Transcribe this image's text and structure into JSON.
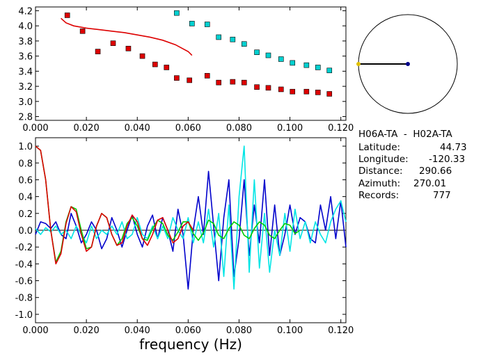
{
  "info": {
    "station_pair": "H06A-TA  -  H02A-TA",
    "latitude_label": "Latitude:",
    "latitude_value": "44.73",
    "longitude_label": "Longitude:",
    "longitude_value": "-120.33",
    "distance_label": "Distance:",
    "distance_value": "290.66",
    "azimuth_label": "Azimuth:",
    "azimuth_value": "270.01",
    "records_label": "Records:",
    "records_value": "777"
  },
  "chart_data": [
    {
      "type": "scatter",
      "panel": "top",
      "xlim": [
        0.0,
        0.122
      ],
      "ylim": [
        2.75,
        4.25
      ],
      "x_ticks": [
        "0.000",
        "0.020",
        "0.040",
        "0.060",
        "0.080",
        "0.100",
        "0.120"
      ],
      "y_ticks": [
        "2.8",
        "3.0",
        "3.2",
        "3.4",
        "3.6",
        "3.8",
        "4.0",
        "4.2"
      ],
      "series": [
        {
          "color": "#dd0000",
          "marker": "square",
          "x": [
            0.0125,
            0.0185,
            0.0245,
            0.0305,
            0.0365,
            0.042,
            0.047,
            0.0515,
            0.0555,
            0.0605,
            0.0675,
            0.072,
            0.0775,
            0.082,
            0.087,
            0.0915,
            0.0965,
            0.101,
            0.1065,
            0.111,
            0.1155
          ],
          "y": [
            4.14,
            3.93,
            3.66,
            3.77,
            3.7,
            3.6,
            3.49,
            3.45,
            3.31,
            3.28,
            3.34,
            3.25,
            3.26,
            3.25,
            3.19,
            3.18,
            3.16,
            3.13,
            3.13,
            3.12,
            3.1
          ]
        },
        {
          "color": "#00d0d0",
          "marker": "square",
          "x": [
            0.0555,
            0.0615,
            0.0675,
            0.072,
            0.0775,
            0.082,
            0.087,
            0.0915,
            0.0965,
            0.101,
            0.1065,
            0.111,
            0.1155
          ],
          "y": [
            4.17,
            4.03,
            4.02,
            3.85,
            3.82,
            3.76,
            3.65,
            3.61,
            3.56,
            3.51,
            3.48,
            3.45,
            3.41
          ]
        },
        {
          "color": "#dd0000",
          "type": "line",
          "x": [
            0.01,
            0.012,
            0.015,
            0.02,
            0.025,
            0.03,
            0.035,
            0.04,
            0.045,
            0.05,
            0.055,
            0.06,
            0.0615
          ],
          "y": [
            4.1,
            4.04,
            4.0,
            3.97,
            3.95,
            3.93,
            3.91,
            3.88,
            3.85,
            3.81,
            3.75,
            3.66,
            3.61
          ]
        }
      ]
    },
    {
      "type": "line",
      "panel": "bottom",
      "xlabel": "frequency (Hz)",
      "xlim": [
        0.0,
        0.122
      ],
      "ylim": [
        -1.1,
        1.1
      ],
      "x_ticks": [
        "0.000",
        "0.020",
        "0.040",
        "0.060",
        "0.080",
        "0.100",
        "0.120"
      ],
      "y_ticks": [
        "-1.0",
        "-0.8",
        "-0.6",
        "-0.4",
        "-0.2",
        "0.0",
        "0.2",
        "0.4",
        "0.6",
        "0.8",
        "1.0"
      ],
      "series": [
        {
          "color": "#0000cc",
          "x": [
            0.0,
            0.002,
            0.004,
            0.006,
            0.008,
            0.01,
            0.012,
            0.014,
            0.016,
            0.018,
            0.02,
            0.022,
            0.024,
            0.026,
            0.028,
            0.03,
            0.032,
            0.034,
            0.036,
            0.038,
            0.04,
            0.042,
            0.044,
            0.046,
            0.048,
            0.05,
            0.052,
            0.054,
            0.056,
            0.058,
            0.06,
            0.062,
            0.064,
            0.066,
            0.068,
            0.07,
            0.072,
            0.074,
            0.076,
            0.078,
            0.08,
            0.082,
            0.084,
            0.086,
            0.088,
            0.09,
            0.092,
            0.094,
            0.096,
            0.098,
            0.1,
            0.102,
            0.104,
            0.106,
            0.108,
            0.11,
            0.112,
            0.114,
            0.116,
            0.118,
            0.12,
            0.122
          ],
          "y": [
            -0.05,
            0.1,
            0.08,
            0.02,
            0.1,
            -0.05,
            -0.1,
            0.2,
            0.05,
            -0.15,
            -0.05,
            0.1,
            0.0,
            -0.22,
            -0.1,
            0.15,
            0.0,
            -0.2,
            0.0,
            0.18,
            -0.05,
            -0.2,
            0.05,
            0.18,
            -0.1,
            0.15,
            0.0,
            -0.25,
            0.25,
            -0.05,
            -0.7,
            0.0,
            0.4,
            -0.05,
            0.7,
            0.05,
            -0.6,
            0.15,
            0.6,
            -0.55,
            -0.1,
            0.6,
            -0.3,
            0.3,
            -0.15,
            0.6,
            -0.3,
            0.3,
            -0.3,
            -0.05,
            0.3,
            -0.05,
            0.15,
            0.1,
            -0.1,
            -0.15,
            0.3,
            0.0,
            0.4,
            -0.1,
            0.35,
            -0.2
          ]
        },
        {
          "color": "#00e5e5",
          "x": [
            0.0,
            0.002,
            0.004,
            0.006,
            0.008,
            0.01,
            0.012,
            0.014,
            0.016,
            0.018,
            0.02,
            0.022,
            0.024,
            0.026,
            0.028,
            0.03,
            0.032,
            0.034,
            0.036,
            0.038,
            0.04,
            0.042,
            0.044,
            0.046,
            0.048,
            0.05,
            0.052,
            0.054,
            0.056,
            0.058,
            0.06,
            0.062,
            0.064,
            0.066,
            0.068,
            0.07,
            0.072,
            0.074,
            0.076,
            0.078,
            0.08,
            0.082,
            0.084,
            0.086,
            0.088,
            0.09,
            0.092,
            0.094,
            0.096,
            0.098,
            0.1,
            0.102,
            0.104,
            0.106,
            0.108,
            0.11,
            0.112,
            0.114,
            0.116,
            0.118,
            0.12,
            0.122
          ],
          "y": [
            0.02,
            -0.05,
            0.03,
            -0.02,
            0.05,
            -0.05,
            0.0,
            -0.1,
            0.05,
            -0.05,
            -0.15,
            0.05,
            -0.1,
            0.0,
            -0.05,
            0.05,
            -0.05,
            0.1,
            -0.1,
            -0.05,
            0.15,
            -0.05,
            -0.1,
            0.05,
            -0.1,
            0.05,
            -0.1,
            0.15,
            0.0,
            -0.1,
            0.15,
            -0.15,
            0.1,
            -0.15,
            0.25,
            -0.2,
            0.2,
            -0.55,
            0.3,
            -0.7,
            0.4,
            1.0,
            -0.5,
            0.6,
            -0.45,
            0.2,
            -0.5,
            0.0,
            -0.3,
            0.2,
            -0.25,
            0.25,
            -0.1,
            0.1,
            -0.15,
            0.1,
            -0.05,
            -0.15,
            0.1,
            0.25,
            0.35,
            0.1
          ]
        },
        {
          "color": "#00cc00",
          "x": [
            0.0,
            0.002,
            0.004,
            0.006,
            0.008,
            0.01,
            0.012,
            0.014,
            0.016,
            0.018,
            0.02,
            0.022,
            0.024,
            0.026,
            0.028,
            0.03,
            0.032,
            0.034,
            0.036,
            0.038,
            0.04,
            0.042,
            0.044,
            0.046,
            0.048,
            0.05,
            0.052,
            0.054,
            0.056,
            0.058,
            0.06,
            0.062,
            0.064,
            0.066,
            0.068,
            0.07,
            0.072,
            0.074,
            0.076,
            0.078,
            0.08,
            0.082,
            0.084,
            0.086,
            0.088,
            0.09,
            0.092,
            0.094,
            0.096,
            0.098,
            0.1,
            0.102,
            0.104
          ],
          "y": [
            1.0,
            0.95,
            0.6,
            0.0,
            -0.38,
            -0.25,
            0.1,
            0.28,
            0.25,
            0.0,
            -0.22,
            -0.2,
            0.05,
            0.2,
            0.15,
            -0.05,
            -0.18,
            -0.1,
            0.08,
            0.15,
            0.05,
            -0.1,
            -0.12,
            0.02,
            0.12,
            0.08,
            -0.06,
            -0.12,
            -0.02,
            0.1,
            0.1,
            -0.04,
            -0.12,
            -0.03,
            0.12,
            0.08,
            -0.06,
            -0.1,
            0.02,
            0.1,
            0.06,
            -0.06,
            -0.1,
            0.02,
            0.1,
            0.06,
            -0.06,
            -0.1,
            0.0,
            0.08,
            0.06,
            -0.04,
            0.0
          ]
        },
        {
          "color": "#dd0000",
          "x": [
            0.0,
            0.002,
            0.004,
            0.006,
            0.008,
            0.01,
            0.012,
            0.014,
            0.016,
            0.018,
            0.02,
            0.022,
            0.024,
            0.026,
            0.028,
            0.03,
            0.032,
            0.034,
            0.036,
            0.038,
            0.04,
            0.042,
            0.044,
            0.046,
            0.048,
            0.05,
            0.052,
            0.054,
            0.056,
            0.058,
            0.06,
            0.062
          ],
          "y": [
            1.0,
            0.95,
            0.6,
            0.0,
            -0.4,
            -0.28,
            0.08,
            0.28,
            0.22,
            -0.05,
            -0.25,
            -0.2,
            0.05,
            0.2,
            0.15,
            -0.05,
            -0.18,
            -0.15,
            0.05,
            0.18,
            0.1,
            -0.1,
            -0.18,
            -0.05,
            0.12,
            0.15,
            0.0,
            -0.15,
            -0.1,
            0.05,
            0.1,
            0.0
          ]
        }
      ]
    }
  ],
  "azimuth_dial": {
    "marker_colors": {
      "center": "#000088",
      "edge": "#e0c000"
    }
  },
  "colors": {
    "axis": "#000000",
    "red": "#dd0000",
    "cyan": "#00d0d0",
    "blue": "#0000cc",
    "green": "#00cc00"
  }
}
